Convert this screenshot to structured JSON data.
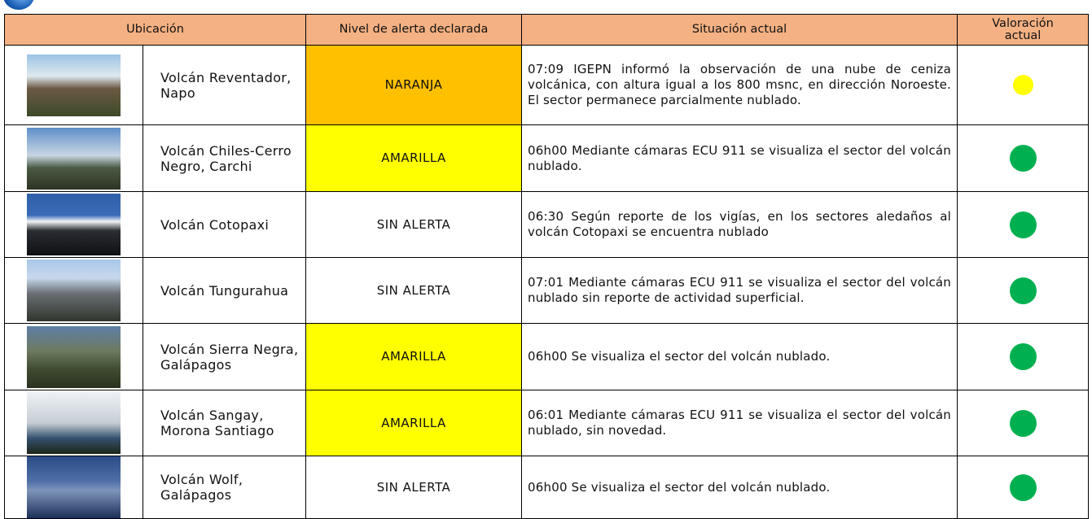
{
  "table": {
    "headers": [
      "Ubicación",
      "Nivel de alerta declarada",
      "Situación actual",
      "Valoración actual"
    ],
    "rows": [
      {
        "name": "Volcán Reventador, Napo",
        "alert": "NARANJA",
        "alert_color": "#ffc000",
        "situation": "07:09 IGEPN informó la observación de una nube de ceniza volcánica, con altura igual a los 800 msnc, en dirección Noroeste. El sector permanece parcialmente nublado.",
        "status_color": "#ffff00"
      },
      {
        "name": "Volcán Chiles-Cerro Negro, Carchi",
        "alert": "AMARILLA",
        "alert_color": "#ffff00",
        "situation": "06h00 Mediante cámaras ECU 911 se visualiza el sector del volcán nublado.",
        "status_color": "#00b050"
      },
      {
        "name": "Volcán Cotopaxi",
        "alert": "SIN ALERTA",
        "alert_color": "#ffffff",
        "situation": "06:30 Según reporte de los vigías, en los sectores aledaños al volcán Cotopaxi se encuentra nublado",
        "status_color": "#00b050"
      },
      {
        "name": "Volcán Tungurahua",
        "alert": "SIN ALERTA",
        "alert_color": "#ffffff",
        "situation": "07:01 Mediante cámaras ECU 911 se visualiza el sector del volcán nublado sin reporte de actividad superficial.",
        "status_color": "#00b050"
      },
      {
        "name": "Volcán Sierra Negra, Galápagos",
        "alert": "AMARILLA",
        "alert_color": "#ffff00",
        "situation": "06h00 Se visualiza el sector del volcán nublado.",
        "status_color": "#00b050"
      },
      {
        "name": "Volcán Sangay, Morona Santiago",
        "alert": "AMARILLA",
        "alert_color": "#ffff00",
        "situation": "06:01 Mediante cámaras ECU 911 se visualiza el sector del volcán nublado, sin novedad.",
        "status_color": "#00b050"
      },
      {
        "name": "Volcán Wolf, Galápagos",
        "alert": "SIN ALERTA",
        "alert_color": "#ffffff",
        "situation": "06h00 Se visualiza el sector del volcán nublado.",
        "status_color": "#00b050"
      }
    ]
  }
}
